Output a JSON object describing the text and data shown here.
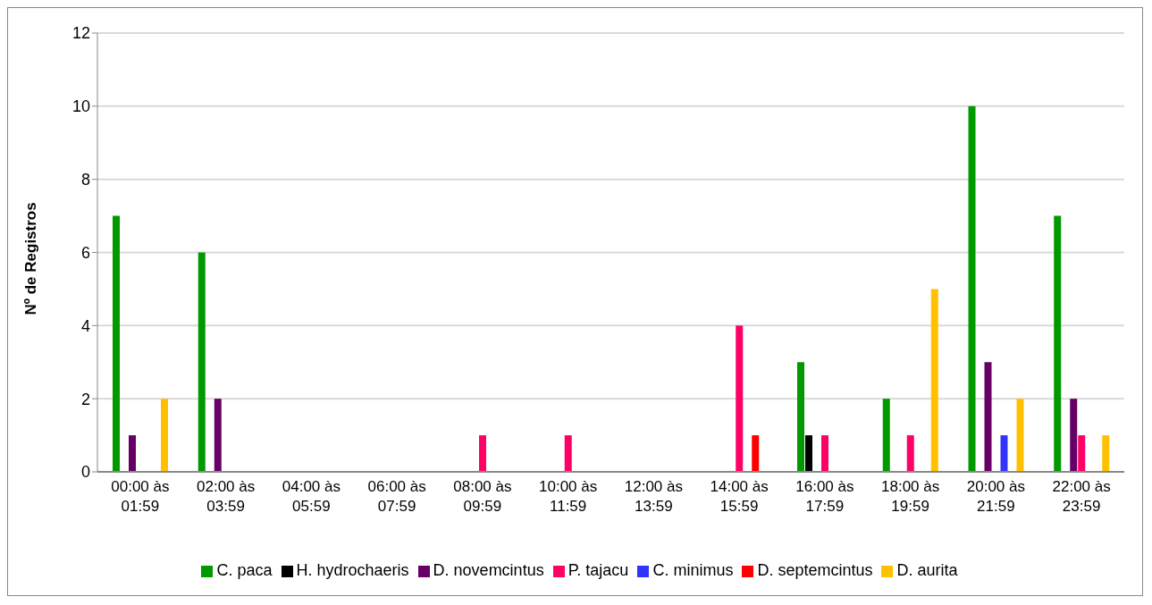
{
  "chart_data": {
    "type": "bar",
    "ylabel": "Nº de Registros",
    "categories": [
      "00:00 às 01:59",
      "02:00 às 03:59",
      "04:00 às 05:59",
      "06:00 às 07:59",
      "08:00 às 09:59",
      "10:00 às 11:59",
      "12:00 às 13:59",
      "14:00 às 15:59",
      "16:00 às 17:59",
      "18:00 às 19:59",
      "20:00 às 21:59",
      "22:00 às 23:59"
    ],
    "series": [
      {
        "name": "C. paca",
        "color": "#009900",
        "values": [
          7,
          6,
          null,
          null,
          null,
          null,
          null,
          null,
          3,
          2,
          10,
          7
        ]
      },
      {
        "name": "H. hydrochaeris",
        "color": "#000000",
        "values": [
          null,
          null,
          null,
          null,
          null,
          null,
          null,
          null,
          1,
          null,
          null,
          null
        ]
      },
      {
        "name": "D. novemcintus",
        "color": "#660066",
        "values": [
          1,
          2,
          null,
          null,
          null,
          null,
          null,
          null,
          null,
          null,
          3,
          2
        ]
      },
      {
        "name": "P. tajacu",
        "color": "#ff0066",
        "values": [
          null,
          null,
          null,
          null,
          1,
          1,
          null,
          4,
          1,
          1,
          null,
          1
        ]
      },
      {
        "name": "C. minimus",
        "color": "#3333ff",
        "values": [
          null,
          null,
          null,
          null,
          null,
          null,
          null,
          null,
          null,
          null,
          1,
          null
        ]
      },
      {
        "name": "D. septemcintus",
        "color": "#ff0000",
        "values": [
          null,
          null,
          null,
          null,
          null,
          null,
          null,
          1,
          null,
          null,
          null,
          null
        ]
      },
      {
        "name": "D. aurita",
        "color": "#ffc000",
        "values": [
          2,
          null,
          null,
          null,
          null,
          null,
          null,
          null,
          null,
          5,
          2,
          1
        ]
      }
    ],
    "ylim": [
      0,
      12
    ],
    "yticks": [
      0,
      2,
      4,
      6,
      8,
      10,
      12
    ],
    "grid": "y",
    "legend": "bottom"
  }
}
